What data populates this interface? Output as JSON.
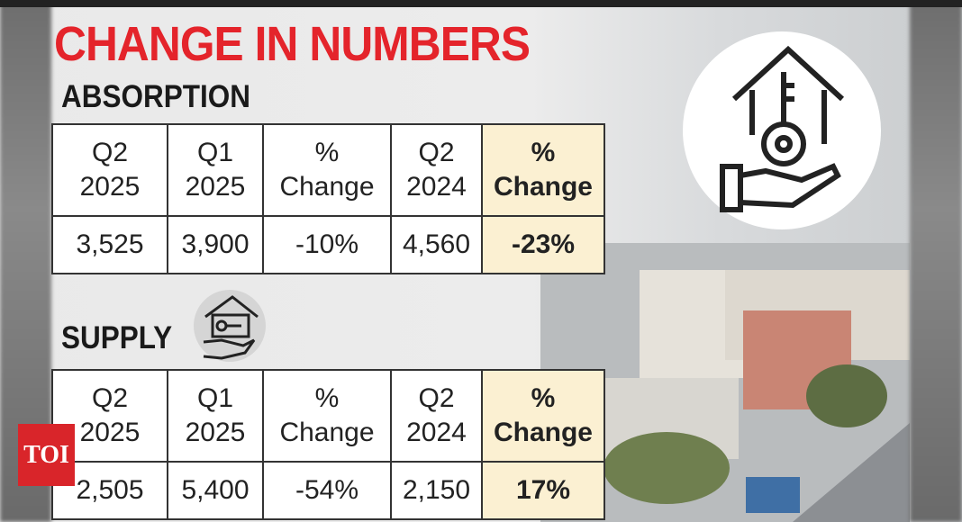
{
  "header": {
    "title": "CHANGE IN NUMBERS"
  },
  "sections": [
    {
      "title": "ABSORPTION",
      "table": {
        "header": [
          "Q2\n2025",
          "Q1\n2025",
          "%\nChange",
          "Q2\n2024",
          "%\nChange"
        ],
        "rows": [
          [
            "3,525",
            "3,900",
            "-10%",
            "4,560",
            "-23%"
          ]
        ]
      }
    },
    {
      "title": "SUPPLY",
      "table": {
        "header": [
          "Q2\n2025",
          "Q1\n2025",
          "%\nChange",
          "Q2\n2024",
          "%\nChange"
        ],
        "rows": [
          [
            "2,505",
            "5,400",
            "-54%",
            "2,150",
            "17%"
          ]
        ]
      }
    }
  ],
  "logo": {
    "text": "TOI"
  }
}
